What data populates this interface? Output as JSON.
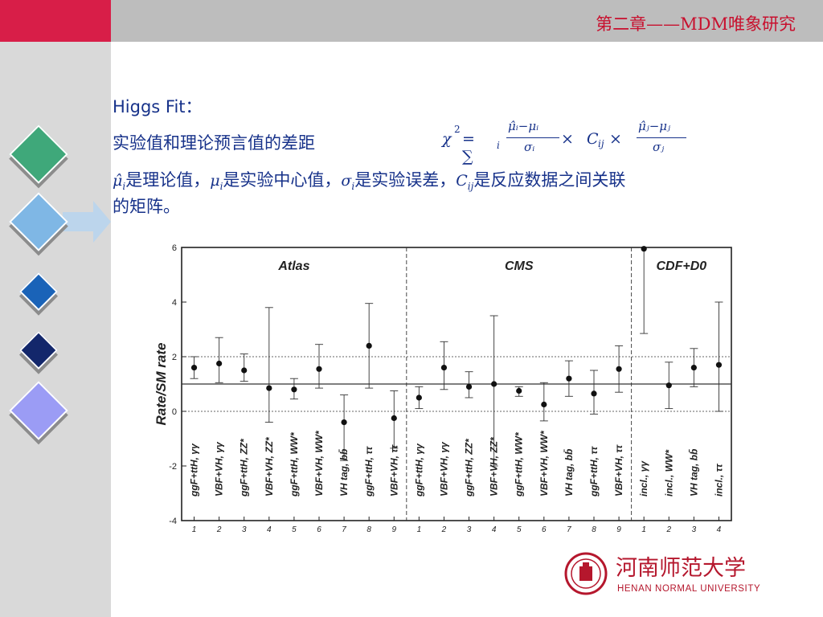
{
  "header": {
    "chapter_title": "第二章——MDM唯象研究"
  },
  "slide": {
    "heading": "Higgs Fit：",
    "line1": "实验值和理论预言值的差距",
    "formula": {
      "chi": "χ",
      "sq": "2",
      "eq": " = ∑",
      "sub_i": "i",
      "num1": "μ̂ᵢ−μᵢ",
      "den1": "σᵢ",
      "times1": " × ",
      "cij": "C",
      "cij_sub": "ij",
      "times2": " × ",
      "num2": "μ̂ⱼ−μⱼ",
      "den2": "σⱼ"
    },
    "line2_parts": {
      "m1": "μ̂",
      "m1_sub": "i",
      "t1": "是理论值，",
      "m2": "μ",
      "m2_sub": "i",
      "t2": "是实验中心值，",
      "m3": "σ",
      "m3_sub": "i",
      "t3": "是实验误差，",
      "m4": "C",
      "m4_sub": "ij",
      "t4": "是反应数据之间关联"
    },
    "line3": "的矩阵。"
  },
  "logo": {
    "name_cn": "河南师范大学",
    "name_en": "HENAN NORMAL UNIVERSITY"
  },
  "chart_data": {
    "type": "scatter",
    "ylabel": "Rate/SM rate",
    "ylim": [
      -4,
      6
    ],
    "yticks": [
      -4,
      -2,
      0,
      2,
      4,
      6
    ],
    "reference_lines": [
      0,
      1,
      2
    ],
    "groups": [
      {
        "name": "Atlas",
        "channels": [
          "ggF+ttH, γγ",
          "VBF+VH, γγ",
          "ggF+ttH, ZZ*",
          "VBF+VH, ZZ*",
          "ggF+ttH, WW*",
          "VBF+VH, WW*",
          "VH tag, bb̄",
          "ggF+ttH, ττ",
          "VBF+VH, ττ"
        ],
        "x_labels": [
          "1",
          "2",
          "3",
          "4",
          "5",
          "6",
          "7",
          "8",
          "9"
        ],
        "values": [
          1.6,
          1.75,
          1.5,
          0.85,
          0.8,
          1.55,
          -0.4,
          2.4,
          -0.25
        ],
        "err_low": [
          0.4,
          0.7,
          0.4,
          1.25,
          0.35,
          0.7,
          1.4,
          1.55,
          1.1
        ],
        "err_high": [
          0.4,
          0.95,
          0.6,
          2.95,
          0.4,
          0.9,
          1.0,
          1.55,
          1.0
        ]
      },
      {
        "name": "CMS",
        "channels": [
          "ggF+ttH, γγ",
          "VBF+VH, γγ",
          "ggF+ttH, ZZ*",
          "VBF+VH, ZZ*",
          "ggF+ttH, WW*",
          "VBF+VH, WW*",
          "VH tag, bb̄",
          "ggF+ttH, ττ",
          "VBF+VH, ττ"
        ],
        "x_labels": [
          "1",
          "2",
          "3",
          "4",
          "5",
          "6",
          "7",
          "8",
          "9"
        ],
        "values": [
          0.5,
          1.6,
          0.9,
          1.0,
          0.75,
          0.25,
          1.2,
          0.65,
          1.55
        ],
        "err_low": [
          0.4,
          0.8,
          0.4,
          3.0,
          0.2,
          0.6,
          0.65,
          0.75,
          0.85
        ],
        "err_high": [
          0.4,
          0.95,
          0.55,
          2.5,
          0.15,
          0.8,
          0.65,
          0.85,
          0.85
        ]
      },
      {
        "name": "CDF+D0",
        "channels": [
          "incl., γγ",
          "incl., WW*",
          "VH tag, bb̄",
          "incl., ττ"
        ],
        "x_labels": [
          "1",
          "2",
          "3",
          "4"
        ],
        "values": [
          5.95,
          0.95,
          1.6,
          1.7
        ],
        "err_low": [
          3.1,
          0.85,
          0.7,
          1.7
        ],
        "err_high": [
          0.05,
          0.85,
          0.7,
          2.3
        ]
      }
    ]
  }
}
